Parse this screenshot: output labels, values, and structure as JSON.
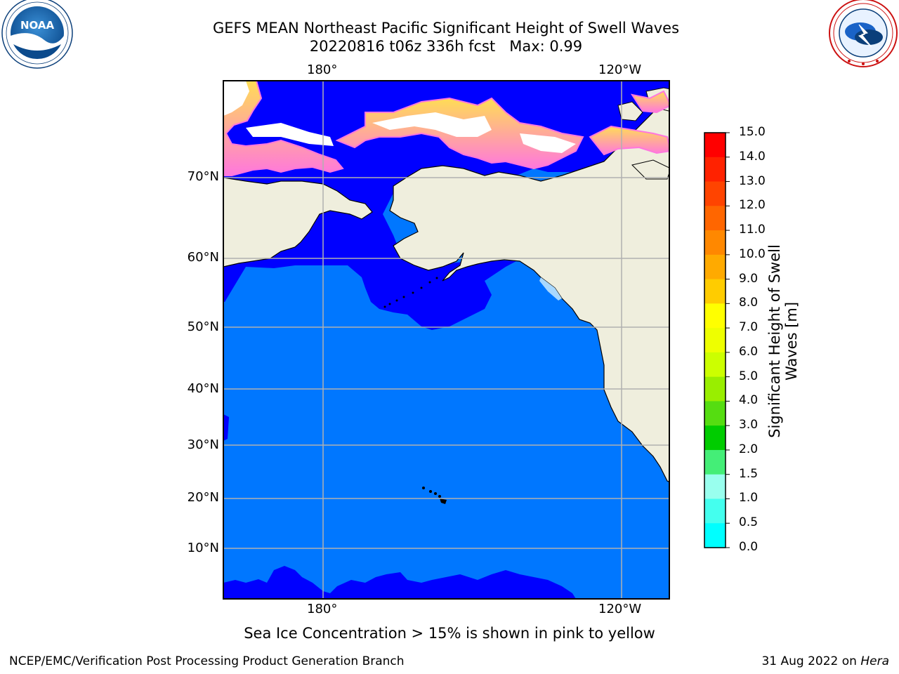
{
  "title_line1": "GEFS MEAN Northeast Pacific Significant Height of Swell Waves",
  "title_line2": "20220816 t06z 336h fcst   Max: 0.99",
  "lon_ticks": [
    "180°",
    "120°W"
  ],
  "lat_ticks": [
    "70°N",
    "60°N",
    "50°N",
    "40°N",
    "30°N",
    "20°N",
    "10°N"
  ],
  "colorbar": {
    "label_line1": "Significant Height of Swell",
    "label_line2": "Waves [m]",
    "ticks": [
      "15.0",
      "14.0",
      "13.0",
      "12.0",
      "11.0",
      "10.0",
      "9.0",
      "8.0",
      "7.0",
      "6.0",
      "5.0",
      "4.0",
      "3.0",
      "2.0",
      "1.5",
      "1.0",
      "0.5",
      "0.0"
    ],
    "colors": [
      "#ff0000",
      "#ff2200",
      "#ff4400",
      "#ff6600",
      "#ff8800",
      "#ffaa00",
      "#ffcc00",
      "#ffff00",
      "#eeff00",
      "#ccff00",
      "#99ee00",
      "#55dd11",
      "#00cc00",
      "#44ee77",
      "#99ffee",
      "#44ffee",
      "#00ffff",
      "#0077ff",
      "#0000ff"
    ]
  },
  "map_colors": {
    "ocean_low": "#0000ff",
    "ocean_mid": "#0077ff",
    "land": "#efeedd",
    "ice_pink": "#ff77dd",
    "ice_yellow": "#ffdd55",
    "grid": "#b0b0b0"
  },
  "caption": "Sea Ice Concentration > 15% is shown in pink to yellow",
  "footer_left": "NCEP/EMC/Verification Post Processing Product Generation Branch",
  "footer_right_date": "31 Aug 2022 on ",
  "footer_right_host": "Hera",
  "logos": {
    "noaa_text": "NOAA",
    "noaa_ring": "NATIONAL OCEANIC AND ATMOSPHERIC ADMINISTRATION · U.S. DEPARTMENT OF COMMERCE",
    "nws_ring": "NATIONAL WEATHER SERVICE"
  }
}
